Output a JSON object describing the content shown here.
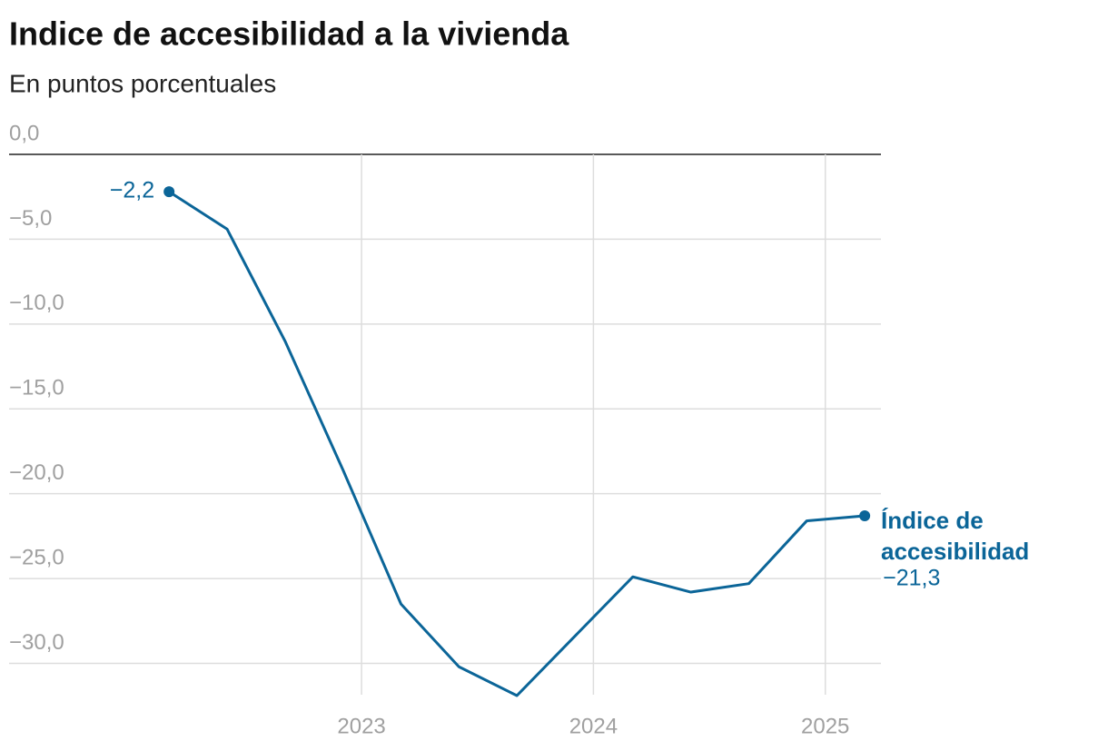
{
  "chart_data": {
    "type": "line",
    "title": "Indice de accesibilidad a la vivienda",
    "subtitle": "En puntos porcentuales",
    "x": [
      2022.17,
      2022.42,
      2022.67,
      2022.92,
      2023.17,
      2023.42,
      2023.67,
      2023.92,
      2024.17,
      2024.42,
      2024.67,
      2024.92,
      2025.17
    ],
    "series": [
      {
        "name": "Índice de accesibilidad",
        "color": "#0b6598",
        "values": [
          -2.2,
          -4.4,
          -11.0,
          -18.6,
          -26.5,
          -30.2,
          -31.9,
          -28.4,
          -24.9,
          -25.8,
          -25.3,
          -21.6,
          -21.3
        ],
        "value_labels": [
          "−2,2",
          null,
          null,
          null,
          null,
          null,
          null,
          null,
          null,
          null,
          null,
          null,
          "−21,3"
        ]
      }
    ],
    "xlim": [
      2021.48,
      2025.24
    ],
    "xticks": [
      2023,
      2024,
      2025
    ],
    "ylim": [
      -32.2,
      0
    ],
    "yticks": [
      {
        "value": 0,
        "label": "0,0"
      },
      {
        "value": -5,
        "label": "−5,0"
      },
      {
        "value": -10,
        "label": "−10,0"
      },
      {
        "value": -15,
        "label": "−15,0"
      },
      {
        "value": -20,
        "label": "−20,0"
      },
      {
        "value": -25,
        "label": "−25,0"
      },
      {
        "value": -30,
        "label": "−30,0"
      }
    ],
    "grid": true
  }
}
